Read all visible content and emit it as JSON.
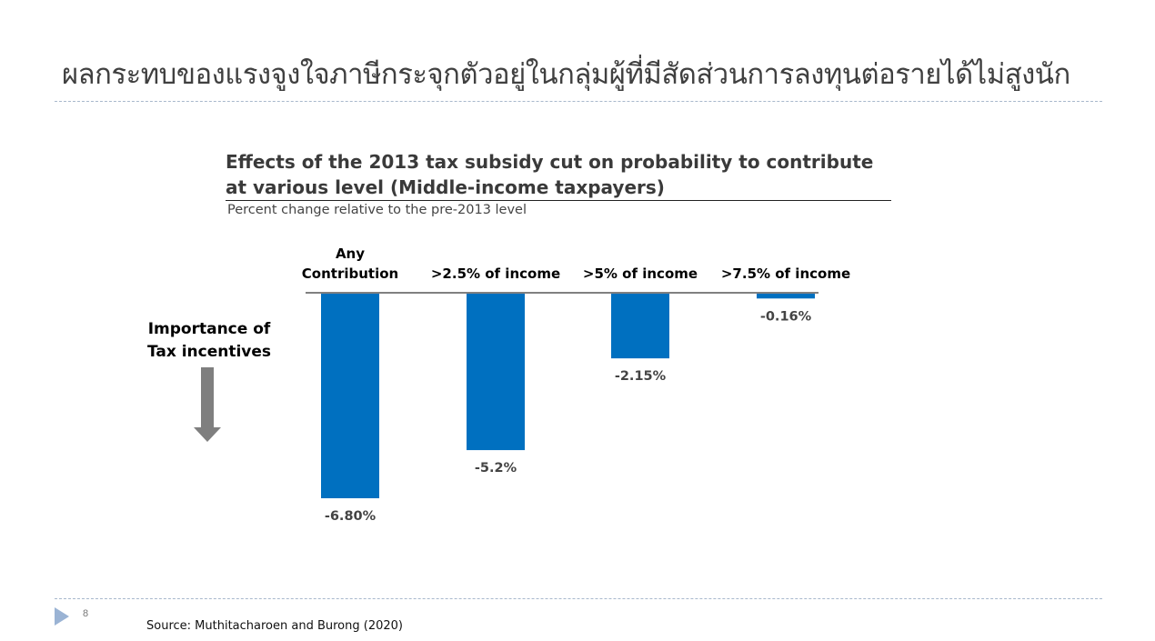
{
  "slide": {
    "title": "ผลกระทบของแรงจูงใจภาษีกระจุกตัวอยู่ในกลุ่มผู้ที่มีสัดส่วนการลงทุนต่อรายได้ไม่สูงนัก",
    "importance_label_line1": "Importance of",
    "importance_label_line2": "Tax incentives",
    "page_number": "8",
    "source": "Source: Muthitacharoen and Burong (2020)"
  },
  "colors": {
    "bar": "#0070c0",
    "arrow": "#7f7f7f",
    "nav": "#9ab3d4"
  },
  "chart_data": {
    "type": "bar",
    "title": "Effects of the 2013 tax subsidy cut on probability to contribute at various level (Middle-income taxpayers)",
    "subtitle": "Percent change relative to the pre-2013 level",
    "xlabel": "",
    "ylabel": "",
    "categories": [
      [
        "Any",
        "Contribution"
      ],
      [
        ">2.5% of income"
      ],
      [
        ">5% of income"
      ],
      [
        ">7.5% of income"
      ]
    ],
    "values": [
      -6.8,
      -5.2,
      -2.15,
      -0.16
    ],
    "value_labels": [
      "-6.80%",
      "-5.2%",
      "-2.15%",
      "-0.16%"
    ],
    "ylim": [
      -6.8,
      0
    ],
    "grid": false,
    "legend": "none"
  }
}
